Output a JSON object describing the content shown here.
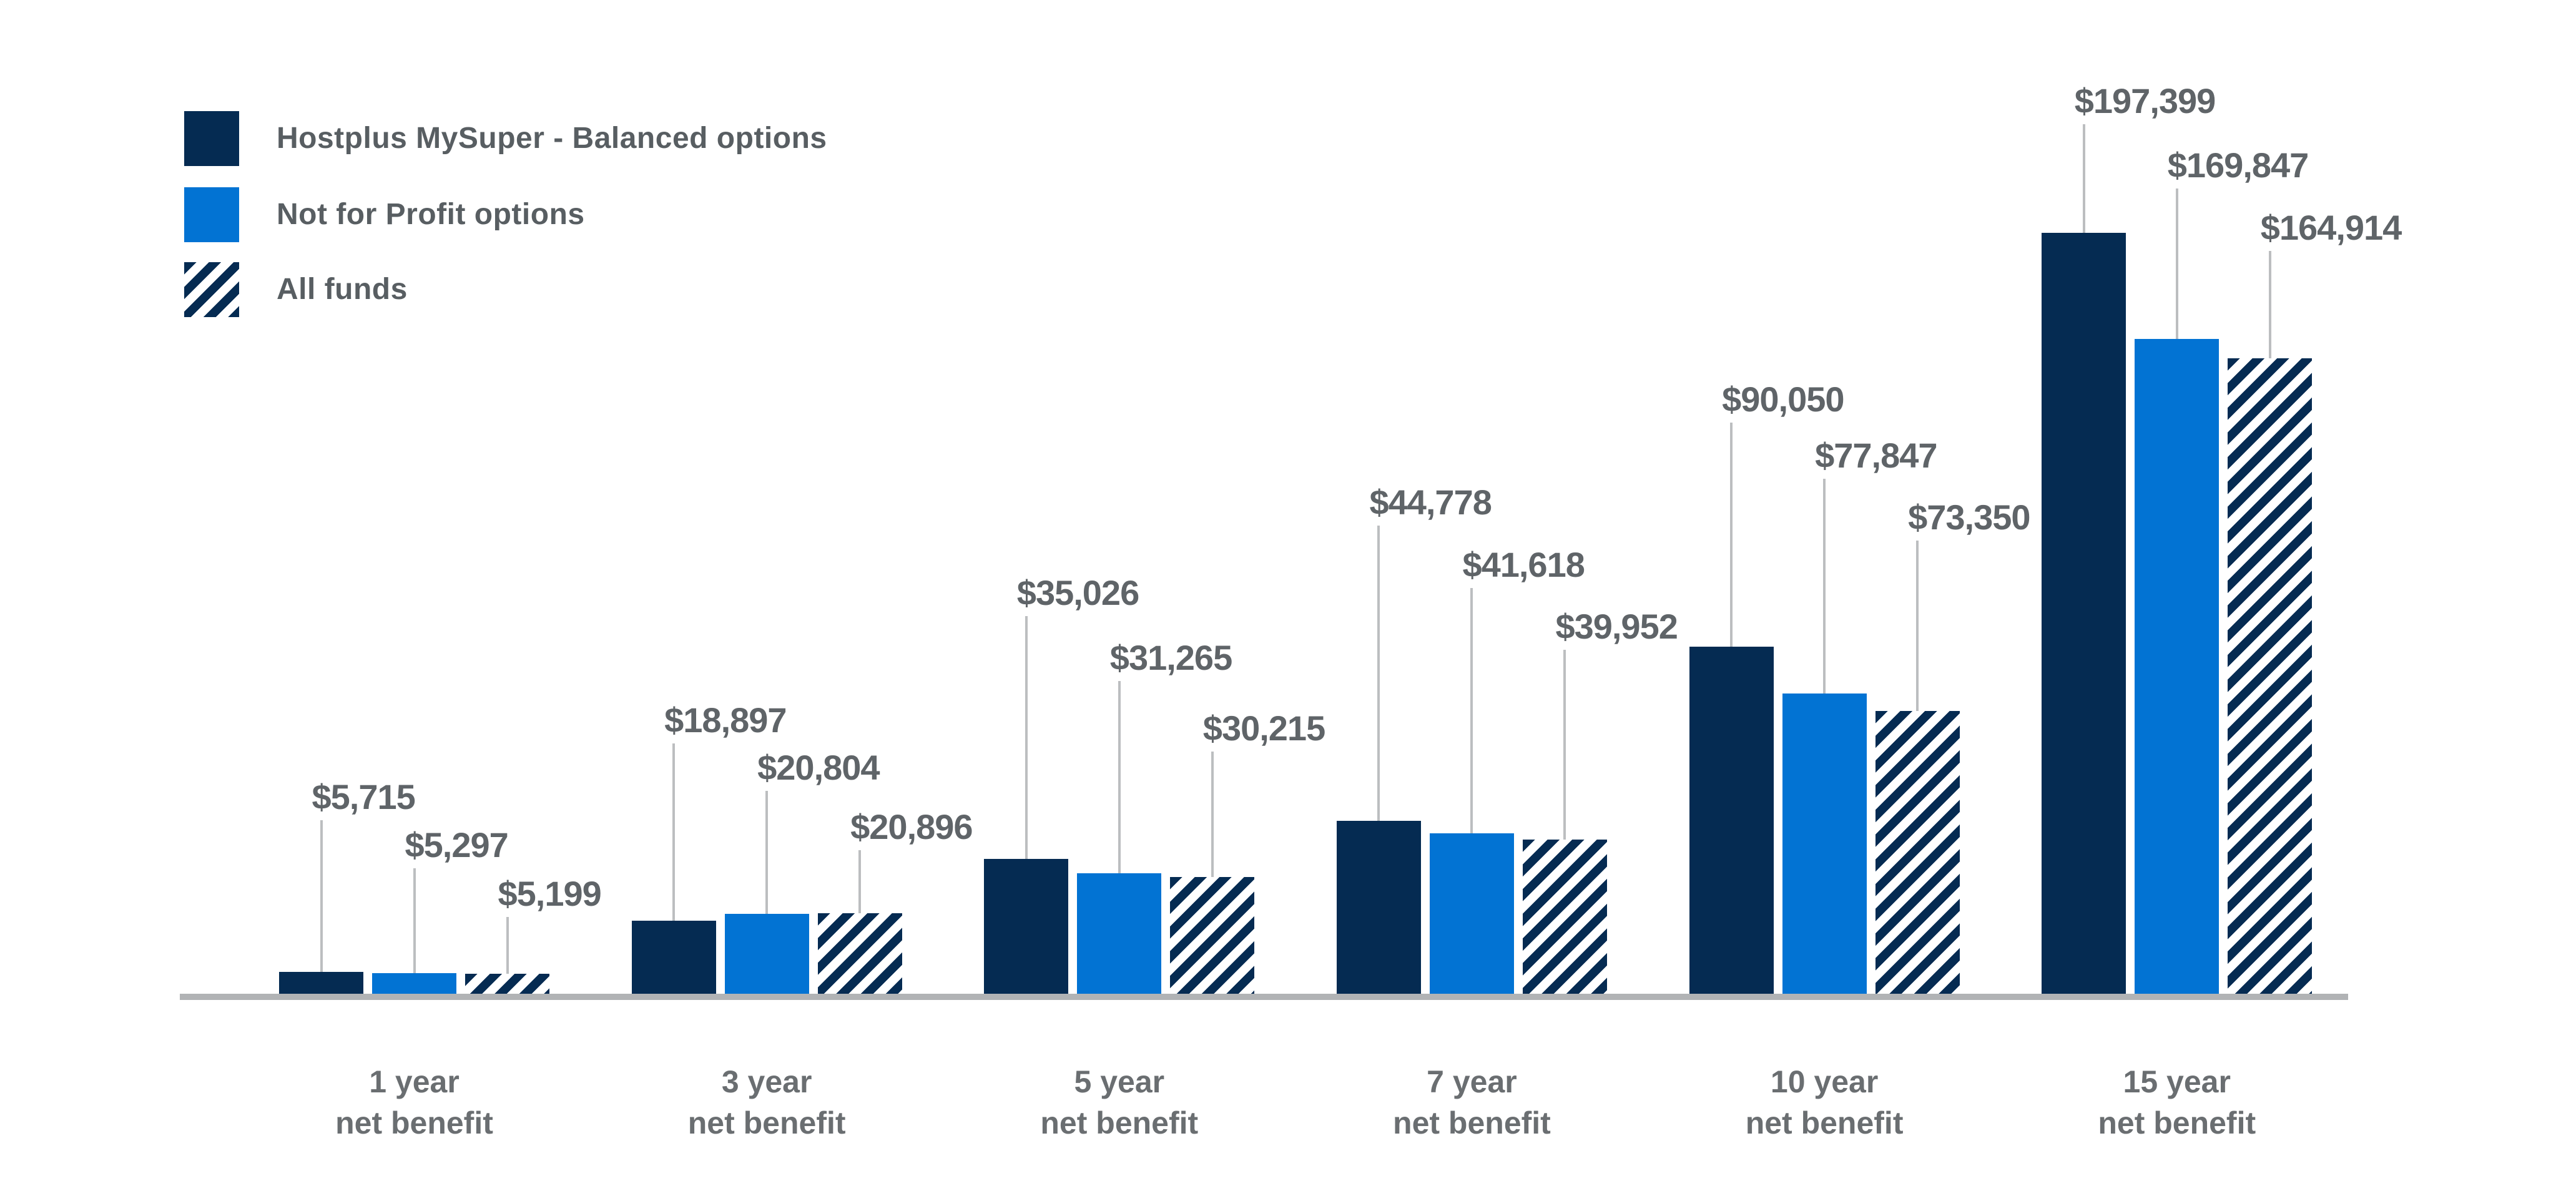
{
  "chart_data": {
    "type": "bar",
    "title": "",
    "categories": [
      "1 year",
      "3 year",
      "5 year",
      "7 year",
      "10 year",
      "15 year"
    ],
    "category_sublabel": "net benefit",
    "series": [
      {
        "name": "Hostplus MySuper - Balanced options",
        "style": "solid",
        "color": "#052B52",
        "values": [
          5715,
          18897,
          35026,
          44778,
          90050,
          197399
        ],
        "labels": [
          "$5,715",
          "$18,897",
          "$35,026",
          "$44,778",
          "$90,050",
          "$197,399"
        ]
      },
      {
        "name": "Not for Profit options",
        "style": "solid",
        "color": "#0273D3",
        "values": [
          5297,
          20804,
          31265,
          41618,
          77847,
          169847
        ],
        "labels": [
          "$5,297",
          "$20,804",
          "$31,265",
          "$41,618",
          "$77,847",
          "$169,847"
        ]
      },
      {
        "name": "All funds",
        "style": "hatched",
        "color": "#052B52",
        "values": [
          5199,
          20896,
          30215,
          39952,
          73350,
          164914
        ],
        "labels": [
          "$5,199",
          "$20,896",
          "$30,215",
          "$39,952",
          "$73,350",
          "$164,914"
        ]
      }
    ],
    "ylim": [
      0,
      200000
    ],
    "legend_position": "top-left",
    "grid": false,
    "colors": {
      "axis_line": "#B1B3B5",
      "leader_line": "#BCBEC0",
      "value_label_text": "#5F6468",
      "category_label_text": "#6A6E71",
      "legend_text": "#585E62",
      "background": "#FFFFFF"
    }
  }
}
